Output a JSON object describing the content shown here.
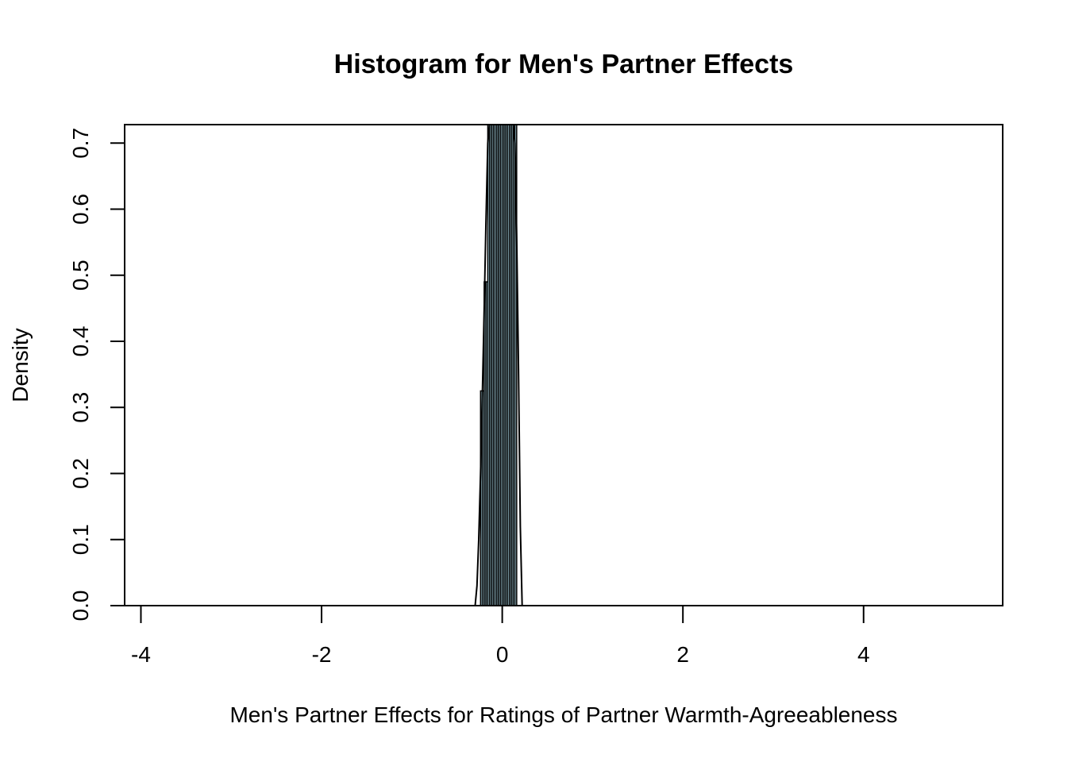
{
  "chart_data": {
    "type": "bar",
    "title": "Histogram for Men's Partner Effects",
    "xlabel": "Men's Partner Effects for Ratings of Partner Warmth-Agreeableness",
    "ylabel": "Density",
    "xlim": [
      -4.18,
      5.54
    ],
    "ylim": [
      0,
      0.728
    ],
    "x_ticks": [
      -4,
      -2,
      0,
      2,
      4
    ],
    "x_tick_labels": [
      "-4",
      "-2",
      "0",
      "2",
      "4"
    ],
    "y_ticks": [
      0,
      0.1,
      0.2,
      0.3,
      0.4,
      0.5,
      0.6,
      0.7
    ],
    "y_tick_labels": [
      "0.0",
      "0.1",
      "0.2",
      "0.3",
      "0.4",
      "0.5",
      "0.6",
      "0.7"
    ],
    "bar_color": "#ADD8E6",
    "bins": [
      {
        "x0": -0.24,
        "x1": -0.22,
        "density": 0.325
      },
      {
        "x0": -0.22,
        "x1": -0.2,
        "density": 0.325
      },
      {
        "x0": -0.2,
        "x1": -0.18,
        "density": 0.49
      },
      {
        "x0": -0.18,
        "x1": -0.16,
        "density": 0.49
      },
      {
        "x0": -0.16,
        "x1": -0.14,
        "density": 0.73
      },
      {
        "x0": -0.14,
        "x1": -0.12,
        "density": 0.73
      },
      {
        "x0": -0.12,
        "x1": -0.1,
        "density": 0.73
      },
      {
        "x0": -0.1,
        "x1": -0.08,
        "density": 0.73
      },
      {
        "x0": -0.08,
        "x1": -0.06,
        "density": 0.73
      },
      {
        "x0": -0.06,
        "x1": -0.04,
        "density": 0.73
      },
      {
        "x0": -0.04,
        "x1": -0.02,
        "density": 0.73
      },
      {
        "x0": -0.02,
        "x1": 0.0,
        "density": 0.73
      },
      {
        "x0": 0.0,
        "x1": 0.02,
        "density": 0.73
      },
      {
        "x0": 0.02,
        "x1": 0.04,
        "density": 0.73
      },
      {
        "x0": 0.04,
        "x1": 0.06,
        "density": 0.73
      },
      {
        "x0": 0.06,
        "x1": 0.08,
        "density": 0.73
      },
      {
        "x0": 0.08,
        "x1": 0.1,
        "density": 0.73
      },
      {
        "x0": 0.1,
        "x1": 0.12,
        "density": 0.73
      },
      {
        "x0": 0.12,
        "x1": 0.14,
        "density": 0.73
      },
      {
        "x0": 0.14,
        "x1": 0.16,
        "density": 0.73
      }
    ],
    "density_curve": {
      "x": [
        -0.3,
        -0.28,
        -0.26,
        -0.24,
        -0.22,
        -0.2,
        -0.18,
        -0.16,
        -0.14,
        -0.12,
        -0.1,
        0.1,
        0.12,
        0.14,
        0.16,
        0.18,
        0.2,
        0.22
      ],
      "y": [
        0.0,
        0.03,
        0.1,
        0.2,
        0.32,
        0.45,
        0.58,
        0.7,
        0.73,
        0.73,
        0.73,
        0.73,
        0.73,
        0.7,
        0.56,
        0.36,
        0.12,
        0.0
      ]
    }
  }
}
